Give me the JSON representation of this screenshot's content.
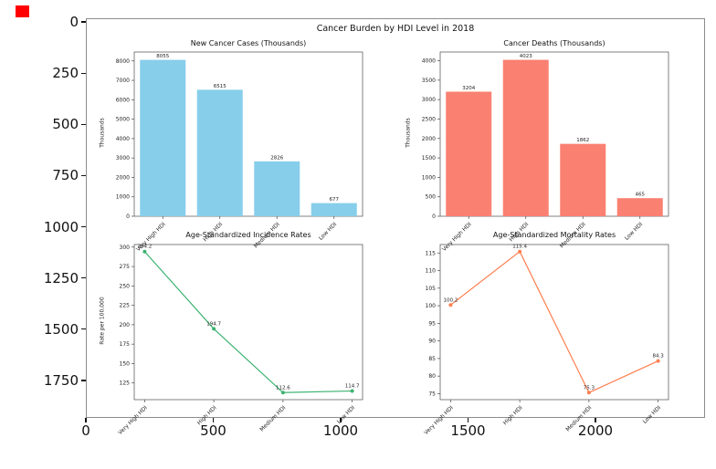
{
  "figure": {
    "suptitle": "Cancer Burden by HDI Level in 2018",
    "background_color": "#ffffff",
    "red_marker_color": "#ff0000"
  },
  "outer_axes": {
    "y_ticks": [
      "0",
      "250",
      "500",
      "750",
      "1000",
      "1250",
      "1500",
      "1750"
    ],
    "x_ticks": [
      "0",
      "500",
      "1000",
      "1500",
      "2000"
    ]
  },
  "chart_data": [
    {
      "type": "bar",
      "title": "New Cancer Cases (Thousands)",
      "ylabel": "Thousands",
      "categories": [
        "Very High HDI",
        "High HDI",
        "Medium HDI",
        "Low HDI"
      ],
      "values": [
        8055,
        6515,
        2826,
        677
      ],
      "value_labels": [
        "8055",
        "6515",
        "2826",
        "677"
      ],
      "color": "#87CEEB",
      "ylim": [
        0,
        8460
      ],
      "yticks": [
        0,
        1000,
        2000,
        3000,
        4000,
        5000,
        6000,
        7000,
        8000
      ],
      "grid": false,
      "legend": "none"
    },
    {
      "type": "bar",
      "title": "Cancer Deaths (Thousands)",
      "ylabel": "Thousands",
      "categories": [
        "Very High HDI",
        "High HDI",
        "Medium HDI",
        "Low HDI"
      ],
      "values": [
        3204,
        4023,
        1862,
        465
      ],
      "value_labels": [
        "3204",
        "4023",
        "1862",
        "465"
      ],
      "color": "#FA8072",
      "ylim": [
        0,
        4224
      ],
      "yticks": [
        0,
        500,
        1000,
        1500,
        2000,
        2500,
        3000,
        3500,
        4000
      ],
      "grid": false,
      "legend": "none"
    },
    {
      "type": "line",
      "title": "Age-Standardized Incidence Rates",
      "ylabel": "Rate per 100,000",
      "categories": [
        "Very High HDI",
        "High HDI",
        "Medium HDI",
        "Low HDI"
      ],
      "values": [
        294.2,
        194.7,
        112.6,
        114.7
      ],
      "value_labels": [
        "294.2",
        "194.7",
        "112.6",
        "114.7"
      ],
      "color": "#3CB371",
      "ylim": [
        103.5,
        303.3
      ],
      "yticks": [
        125,
        150,
        175,
        200,
        225,
        250,
        275,
        300
      ],
      "grid": false,
      "legend": "none"
    },
    {
      "type": "line",
      "title": "Age-Standardized Mortality Rates",
      "ylabel": "",
      "categories": [
        "Very High HDI",
        "High HDI",
        "Medium HDI",
        "Low HDI"
      ],
      "values": [
        100.2,
        115.4,
        75.3,
        84.3
      ],
      "value_labels": [
        "100.2",
        "115.4",
        "75.3",
        "84.3"
      ],
      "color": "#FF7F50",
      "ylim": [
        73.3,
        117.4
      ],
      "yticks": [
        75,
        80,
        85,
        90,
        95,
        100,
        105,
        110,
        115
      ],
      "grid": false,
      "legend": "none"
    }
  ]
}
